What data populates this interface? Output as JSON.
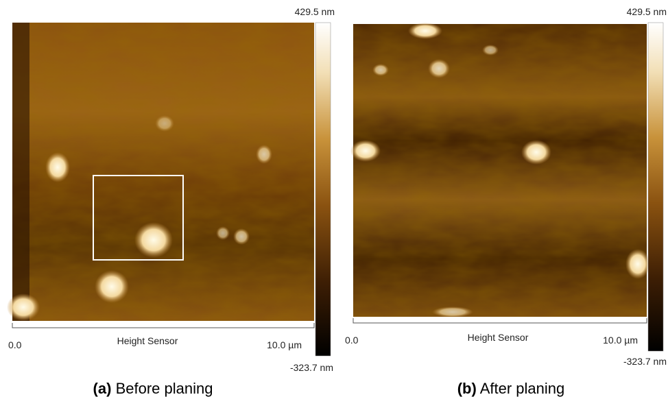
{
  "panels": [
    {
      "colorbar": {
        "max": "429.5 nm",
        "min": "-323.7 nm"
      },
      "axis": {
        "start": "0.0",
        "label": "Height Sensor",
        "end": "10.0 µm"
      },
      "caption": {
        "tag": "(a)",
        "text": "Before planing"
      }
    },
    {
      "colorbar": {
        "max": "429.5 nm",
        "min": "-323.7 nm"
      },
      "axis": {
        "start": "0.0",
        "label": "Height Sensor",
        "end": "10.0 µm"
      },
      "caption": {
        "tag": "(b)",
        "text": "After planing"
      }
    }
  ]
}
